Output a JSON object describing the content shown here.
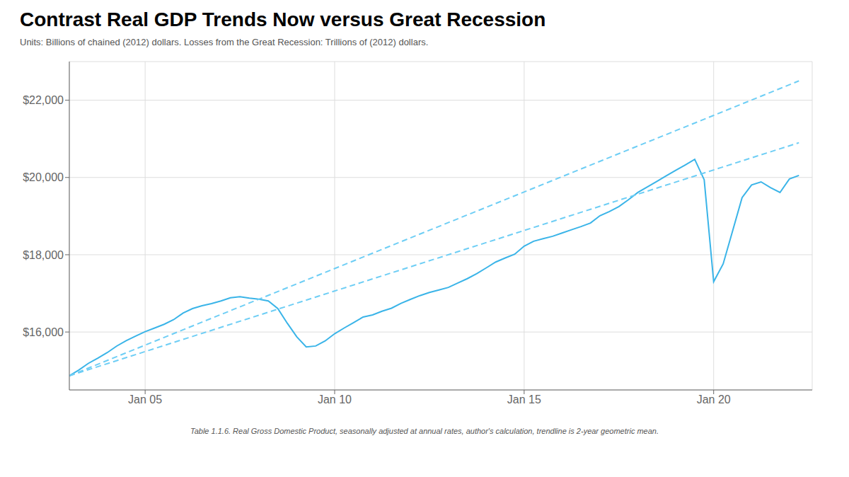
{
  "chart_data": {
    "type": "line",
    "title": "Contrast Real GDP Trends Now versus Great Recession",
    "subtitle": "Units: Billions of chained (2012) dollars. Losses from the Great Recession: Trillions of (2012) dollars.",
    "footnote": "Table 1.1.6. Real Gross Domestic Product, seasonally adjusted at annual rates, author's calculation, trendline is 2-year geometric mean.",
    "xlim": [
      2003.0,
      2022.6
    ],
    "xticks": [
      {
        "value": 2005,
        "label": "Jan 05"
      },
      {
        "value": 2010,
        "label": "Jan 10"
      },
      {
        "value": 2015,
        "label": "Jan 15"
      },
      {
        "value": 2020,
        "label": "Jan 20"
      }
    ],
    "ylim": [
      14500,
      23000
    ],
    "yticks": [
      {
        "value": 16000,
        "label": "$16,000"
      },
      {
        "value": 18000,
        "label": "$18,000"
      },
      {
        "value": 20000,
        "label": "$20,000"
      },
      {
        "value": 22000,
        "label": "$22,000"
      }
    ],
    "grid": true,
    "series": [
      {
        "color": "#3ab4e8",
        "line_style": "solid",
        "x": [
          2003.0,
          2003.25,
          2003.5,
          2003.75,
          2004.0,
          2004.25,
          2004.5,
          2004.75,
          2005.0,
          2005.25,
          2005.5,
          2005.75,
          2006.0,
          2006.25,
          2006.5,
          2006.75,
          2007.0,
          2007.25,
          2007.5,
          2007.75,
          2008.0,
          2008.25,
          2008.5,
          2008.75,
          2009.0,
          2009.25,
          2009.5,
          2009.75,
          2010.0,
          2010.25,
          2010.5,
          2010.75,
          2011.0,
          2011.25,
          2011.5,
          2011.75,
          2012.0,
          2012.25,
          2012.5,
          2012.75,
          2013.0,
          2013.25,
          2013.5,
          2013.75,
          2014.0,
          2014.25,
          2014.5,
          2014.75,
          2015.0,
          2015.25,
          2015.5,
          2015.75,
          2016.0,
          2016.25,
          2016.5,
          2016.75,
          2017.0,
          2017.25,
          2017.5,
          2017.75,
          2018.0,
          2018.25,
          2018.5,
          2018.75,
          2019.0,
          2019.25,
          2019.5,
          2019.75,
          2020.0,
          2020.25,
          2020.5,
          2020.75,
          2021.0,
          2021.25,
          2021.5,
          2021.75,
          2022.0,
          2022.25
        ],
        "values": [
          14867,
          15015,
          15187,
          15322,
          15467,
          15636,
          15775,
          15893,
          16010,
          16102,
          16199,
          16318,
          16490,
          16606,
          16680,
          16736,
          16804,
          16887,
          16913,
          16875,
          16848,
          16805,
          16606,
          16228,
          15876,
          15614,
          15638,
          15769,
          15956,
          16103,
          16243,
          16388,
          16441,
          16538,
          16616,
          16741,
          16844,
          16942,
          17022,
          17088,
          17154,
          17268,
          17381,
          17510,
          17660,
          17811,
          17916,
          18014,
          18222,
          18349,
          18417,
          18477,
          18561,
          18646,
          18729,
          18821,
          19010,
          19120,
          19248,
          19422,
          19612,
          19754,
          19898,
          20042,
          20184,
          20323,
          20469,
          19942,
          17302,
          17762,
          18617,
          19478,
          19806,
          19886,
          19736,
          19611,
          19964,
          20052
        ]
      },
      {
        "color": "#6ecef5",
        "line_style": "dashed",
        "x": [
          2003.0,
          2022.25
        ],
        "values": [
          14867,
          22500
        ]
      },
      {
        "color": "#6ecef5",
        "line_style": "dashed",
        "x": [
          2003.0,
          2022.25
        ],
        "values": [
          14867,
          20900
        ]
      }
    ]
  }
}
